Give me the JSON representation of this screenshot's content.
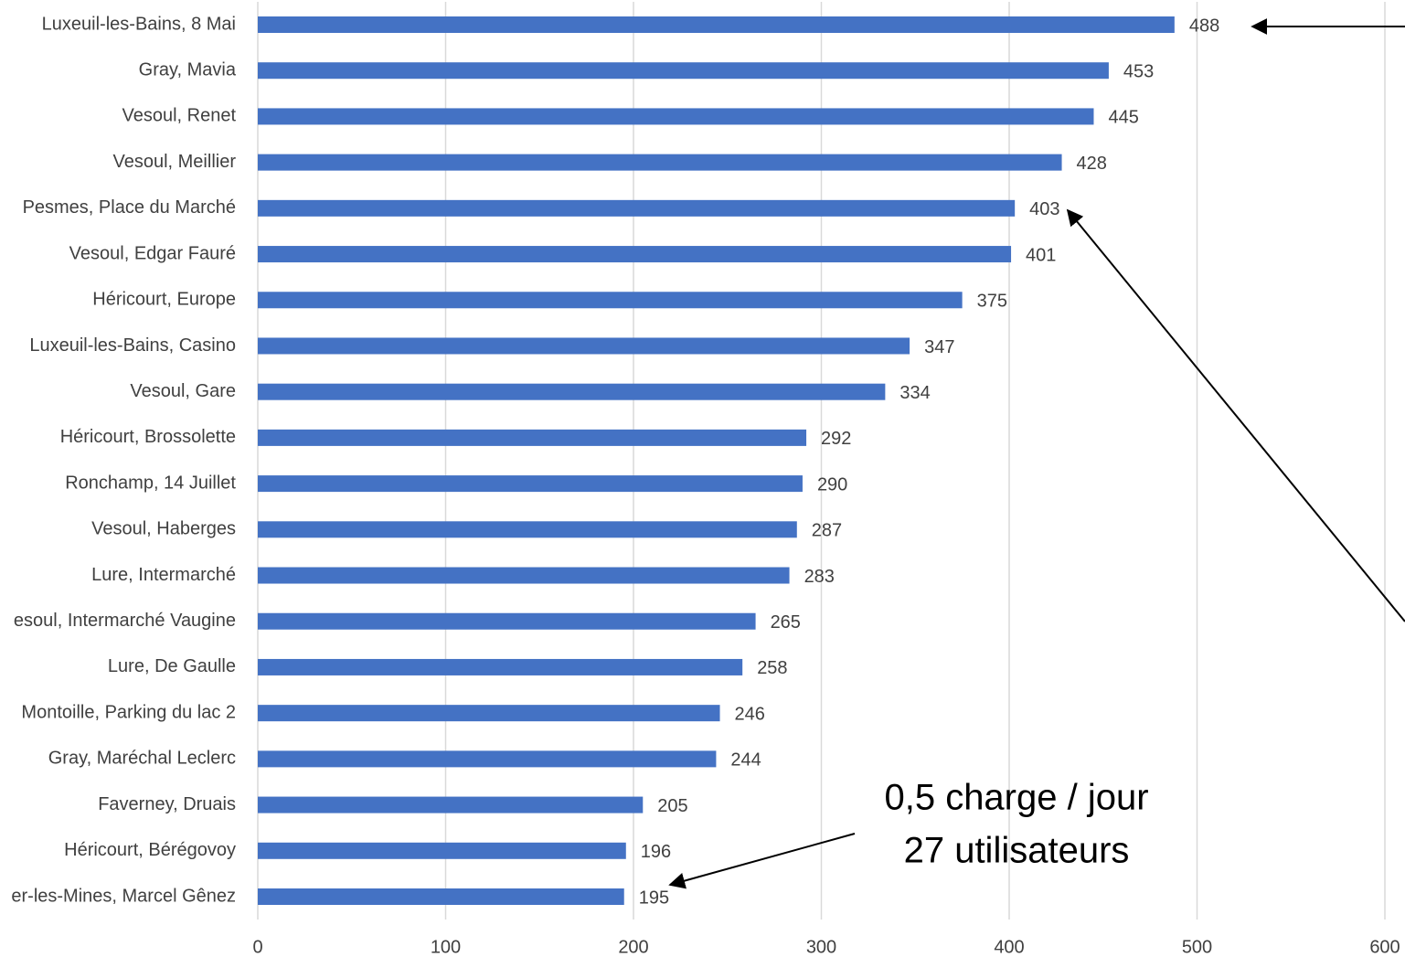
{
  "chart_data": {
    "type": "bar",
    "orientation": "horizontal",
    "categories": [
      "Luxeuil-les-Bains, 8 Mai",
      "Gray, Mavia",
      "Vesoul, Renet",
      "Vesoul, Meillier",
      "Pesmes, Place du Marché",
      "Vesoul, Edgar Fauré",
      "Héricourt, Europe",
      "Luxeuil-les-Bains, Casino",
      "Vesoul, Gare",
      "Héricourt, Brossolette",
      "Ronchamp, 14 Juillet",
      "Vesoul, Haberges",
      "Lure, Intermarché",
      "esoul, Intermarché Vaugine",
      "Lure, De Gaulle",
      "Montoille, Parking du lac 2",
      "Gray, Maréchal Leclerc",
      "Faverney, Druais",
      "Héricourt, Bérégovoy",
      "er-les-Mines, Marcel Gênez"
    ],
    "values": [
      488,
      453,
      445,
      428,
      403,
      401,
      375,
      347,
      334,
      292,
      290,
      287,
      283,
      265,
      258,
      246,
      244,
      205,
      196,
      195
    ],
    "color": "#4472c4",
    "xlim": [
      0,
      600
    ],
    "xticks": [
      0,
      100,
      200,
      300,
      400,
      500,
      600
    ],
    "grid": true,
    "annotations": [
      "0,5 charge / jour",
      "27 utilisateurs"
    ]
  }
}
